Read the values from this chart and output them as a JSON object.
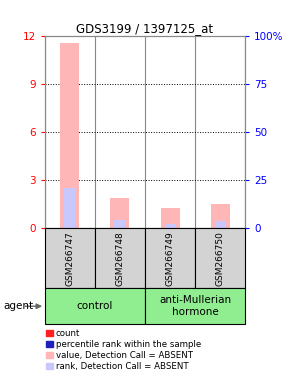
{
  "title": "GDS3199 / 1397125_at",
  "samples": [
    "GSM266747",
    "GSM266748",
    "GSM266749",
    "GSM266750"
  ],
  "absent_value_bars": [
    11.6,
    1.9,
    1.3,
    1.5
  ],
  "absent_rank_bars": [
    2.55,
    0.5,
    0.28,
    0.45
  ],
  "present_value_bars": [
    0.05,
    0.05,
    0.05,
    0.05
  ],
  "present_rank_bars": [
    0.05,
    0.05,
    0.05,
    0.05
  ],
  "ylim_left": [
    0,
    12
  ],
  "ylim_right": [
    0,
    100
  ],
  "yticks_left": [
    0,
    3,
    6,
    9,
    12
  ],
  "yticks_right": [
    0,
    25,
    50,
    75,
    100
  ],
  "ytick_labels_right": [
    "0",
    "25",
    "50",
    "75",
    "100%"
  ],
  "color_absent_value": "#ffb6b6",
  "color_absent_rank": "#c8c8ff",
  "color_present_value": "#ff2020",
  "color_present_rank": "#2020bb",
  "legend_items": [
    {
      "label": "count",
      "color": "#ff2020"
    },
    {
      "label": "percentile rank within the sample",
      "color": "#2020bb"
    },
    {
      "label": "value, Detection Call = ABSENT",
      "color": "#ffb6b6"
    },
    {
      "label": "rank, Detection Call = ABSENT",
      "color": "#c8c8ff"
    }
  ],
  "control_samples": [
    0,
    1
  ],
  "treatment_samples": [
    2,
    3
  ],
  "control_label": "control",
  "treatment_label": "anti-Mullerian\nhormone",
  "group_color": "#90ee90",
  "sample_bg_color": "#d3d3d3",
  "agent_label": "agent"
}
